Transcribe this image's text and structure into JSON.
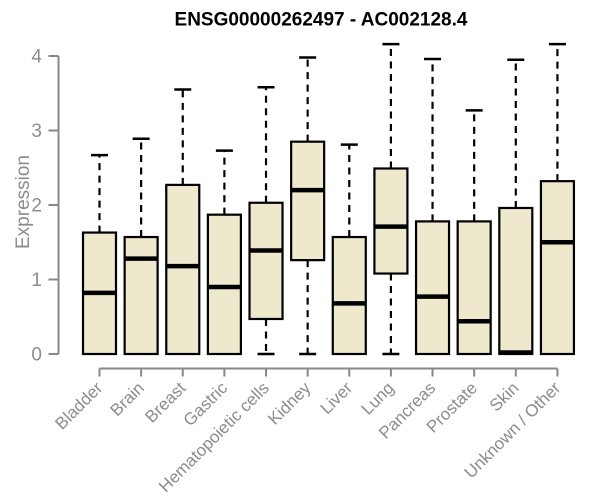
{
  "chart_data": {
    "type": "boxplot",
    "title": "ENSG00000262497 - AC002128.4",
    "xlabel": "",
    "ylabel": "Expression",
    "ylim": [
      0,
      4
    ],
    "yticks": [
      0,
      1,
      2,
      3,
      4
    ],
    "grid": false,
    "legend": "none",
    "categories": [
      "Bladder",
      "Brain",
      "Breast",
      "Gastric",
      "Hematopoietic cells",
      "Kidney",
      "Liver",
      "Lung",
      "Pancreas",
      "Prostate",
      "Skin",
      "Unknown / Other"
    ],
    "boxes": [
      {
        "category": "Bladder",
        "whisker_low": 0,
        "q1": 0,
        "median": 0.82,
        "q3": 1.63,
        "whisker_high": 2.67
      },
      {
        "category": "Brain",
        "whisker_low": 0,
        "q1": 0,
        "median": 1.28,
        "q3": 1.57,
        "whisker_high": 2.89
      },
      {
        "category": "Breast",
        "whisker_low": 0,
        "q1": 0,
        "median": 1.18,
        "q3": 2.27,
        "whisker_high": 3.55
      },
      {
        "category": "Gastric",
        "whisker_low": 0,
        "q1": 0,
        "median": 0.9,
        "q3": 1.87,
        "whisker_high": 2.73
      },
      {
        "category": "Hematopoietic cells",
        "whisker_low": 0,
        "q1": 0.47,
        "median": 1.39,
        "q3": 2.03,
        "whisker_high": 3.58
      },
      {
        "category": "Kidney",
        "whisker_low": 0,
        "q1": 1.26,
        "median": 2.2,
        "q3": 2.85,
        "whisker_high": 3.98
      },
      {
        "category": "Liver",
        "whisker_low": 0,
        "q1": 0,
        "median": 0.68,
        "q3": 1.57,
        "whisker_high": 2.81
      },
      {
        "category": "Lung",
        "whisker_low": 0,
        "q1": 1.08,
        "median": 1.71,
        "q3": 2.49,
        "whisker_high": 4.16
      },
      {
        "category": "Pancreas",
        "whisker_low": 0,
        "q1": 0,
        "median": 0.77,
        "q3": 1.78,
        "whisker_high": 3.96
      },
      {
        "category": "Prostate",
        "whisker_low": 0,
        "q1": 0,
        "median": 0.44,
        "q3": 1.78,
        "whisker_high": 3.27
      },
      {
        "category": "Skin",
        "whisker_low": 0,
        "q1": 0,
        "median": 0.02,
        "q3": 1.96,
        "whisker_high": 3.95
      },
      {
        "category": "Unknown / Other",
        "whisker_low": 0,
        "q1": 0,
        "median": 1.5,
        "q3": 2.32,
        "whisker_high": 4.16
      }
    ],
    "colors": {
      "box_fill": "#EEE8CD",
      "box_stroke": "#000000",
      "whisker": "#000000",
      "median": "#000000",
      "axis": "#888888",
      "tick_label": "#8C8C8C",
      "title": "#000000",
      "background": "#FFFFFF"
    }
  }
}
